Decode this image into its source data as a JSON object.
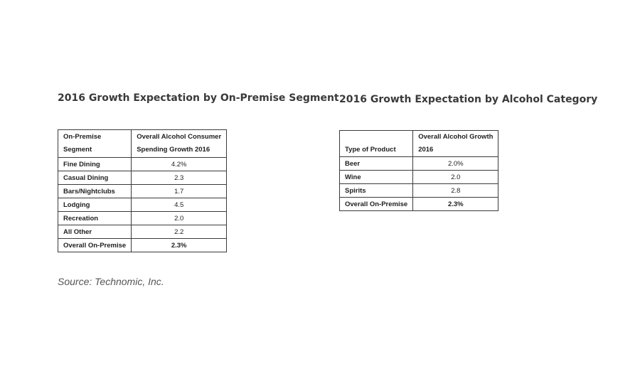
{
  "table1": {
    "title": "2016 Growth Expectation by On-Premise Segment",
    "header": {
      "col1_line1": "On-Premise",
      "col1_line2": "Segment",
      "col2_line1": "Overall Alcohol Consumer",
      "col2_line2": "Spending Growth 2016"
    },
    "rows": [
      {
        "label": "Fine Dining",
        "value": "4.2%"
      },
      {
        "label": "Casual Dining",
        "value": "2.3"
      },
      {
        "label": "Bars/Nightclubs",
        "value": "1.7"
      },
      {
        "label": "Lodging",
        "value": "4.5"
      },
      {
        "label": "Recreation",
        "value": "2.0"
      },
      {
        "label": "All Other",
        "value": "2.2"
      },
      {
        "label": "Overall On-Premise",
        "value": "2.3%"
      }
    ]
  },
  "table2": {
    "title": "2016 Growth Expectation by Alcohol Category",
    "header": {
      "col1": "Type of Product",
      "col2_line1": "Overall Alcohol Growth",
      "col2_line2": "2016"
    },
    "rows": [
      {
        "label": "Beer",
        "value": "2.0%"
      },
      {
        "label": "Wine",
        "value": "2.0"
      },
      {
        "label": "Spirits",
        "value": "2.8"
      },
      {
        "label": "Overall On-Premise",
        "value": "2.3%"
      }
    ]
  },
  "source": "Source: Technomic, Inc."
}
